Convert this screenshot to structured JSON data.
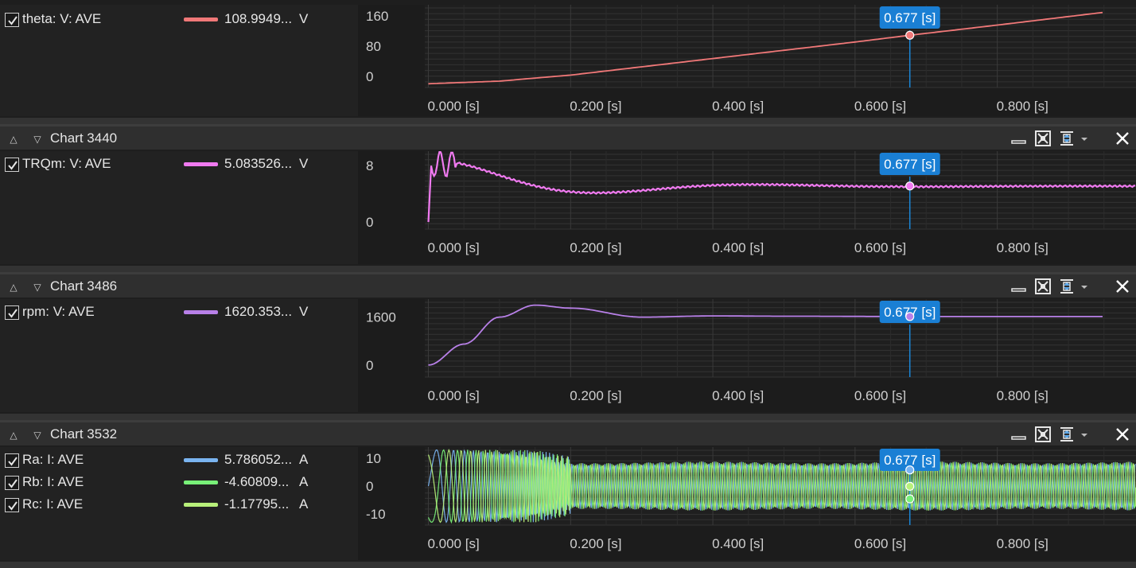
{
  "cursor_label": "0.677 [s]",
  "x_ticks": [
    "0.000 [s]",
    "0.200 [s]",
    "0.400 [s]",
    "0.600 [s]",
    "0.800 [s]"
  ],
  "panels": [
    {
      "title": "",
      "y_ticks": [
        "160",
        "80",
        "0"
      ],
      "series": [
        {
          "name": "theta: V: AVE",
          "value": "108.9949...",
          "unit": "V",
          "color": "#f07878",
          "checked": true
        }
      ]
    },
    {
      "title": "Chart 3440",
      "y_ticks": [
        "8",
        "0"
      ],
      "series": [
        {
          "name": "TRQm: V: AVE",
          "value": "5.083526...",
          "unit": "V",
          "color": "#f07af0",
          "checked": true
        }
      ]
    },
    {
      "title": "Chart 3486",
      "y_ticks": [
        "1600",
        "0"
      ],
      "series": [
        {
          "name": "rpm: V: AVE",
          "value": "1620.353...",
          "unit": "V",
          "color": "#b880e8",
          "checked": true
        }
      ]
    },
    {
      "title": "Chart 3532",
      "y_ticks": [
        "10",
        "0",
        "-10"
      ],
      "series": [
        {
          "name": "Ra: I: AVE",
          "value": "5.786052...",
          "unit": "A",
          "color": "#7ab4f0",
          "checked": true
        },
        {
          "name": "Rb: I: AVE",
          "value": "-4.60809...",
          "unit": "A",
          "color": "#78f078",
          "checked": true
        },
        {
          "name": "Rc: I: AVE",
          "value": "-1.17795...",
          "unit": "A",
          "color": "#b8f07a",
          "checked": true
        }
      ]
    }
  ],
  "icons": {
    "collapse_up": "triangle-up-icon",
    "collapse_down": "triangle-down-icon",
    "minimize": "minimize-icon",
    "fit": "fit-to-screen-icon",
    "fit_y": "fit-vertical-icon",
    "close": "close-icon"
  },
  "chart_data": [
    {
      "type": "line",
      "series": [
        {
          "name": "theta: V: AVE",
          "x": [
            0.0,
            0.1,
            0.2,
            0.4,
            0.6,
            0.677,
            0.8,
            0.95
          ],
          "y": [
            -20,
            -13,
            3,
            47,
            91,
            109,
            136,
            170
          ]
        }
      ],
      "xlim": [
        -0.005,
        0.995
      ],
      "ylim": [
        -30,
        190
      ]
    },
    {
      "type": "line",
      "series": [
        {
          "name": "TRQm: V: AVE",
          "x": [
            0.0,
            0.01,
            0.05,
            0.1,
            0.15,
            0.2,
            0.3,
            0.4,
            0.5,
            0.6,
            0.677,
            0.8,
            0.95
          ],
          "y": [
            0,
            10,
            9.3,
            8.2,
            6.0,
            4.4,
            5.0,
            5.4,
            5.1,
            5.05,
            5.08,
            5.05,
            5.05
          ]
        }
      ],
      "xlim": [
        -0.005,
        0.995
      ],
      "ylim": [
        -1,
        10
      ]
    },
    {
      "type": "line",
      "series": [
        {
          "name": "rpm: V: AVE",
          "x": [
            0.0,
            0.05,
            0.1,
            0.15,
            0.2,
            0.3,
            0.4,
            0.5,
            0.677,
            0.8,
            0.95
          ],
          "y": [
            0,
            700,
            1600,
            2000,
            1900,
            1600,
            1640,
            1630,
            1620,
            1620,
            1620
          ]
        }
      ],
      "xlim": [
        -0.005,
        0.995
      ],
      "ylim": [
        -400,
        2200
      ]
    },
    {
      "type": "line",
      "series": [
        {
          "name": "Ra: I: AVE"
        },
        {
          "name": "Rb: I: AVE"
        },
        {
          "name": "Rc: I: AVE"
        }
      ],
      "xlim": [
        -0.005,
        0.995
      ],
      "ylim": [
        -14,
        14
      ]
    }
  ]
}
